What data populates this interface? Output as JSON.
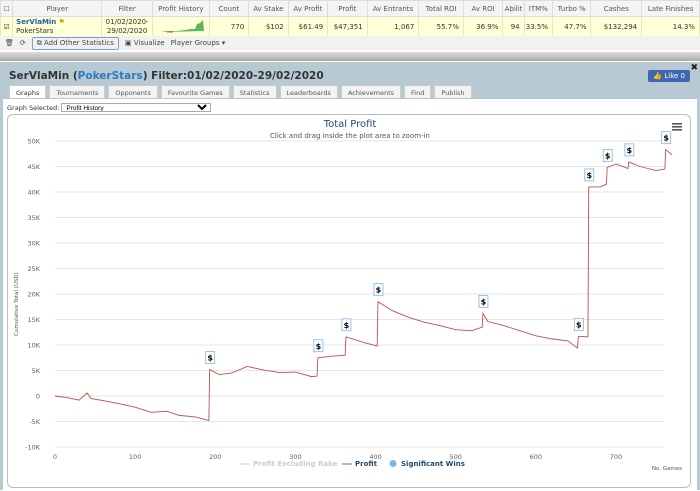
{
  "table": {
    "headers": [
      "",
      "Player",
      "Filter",
      "Profit History",
      "Count",
      "Av Stake",
      "Av Profit",
      "Profit",
      "Av Entrants",
      "Total ROI",
      "Av ROI",
      "Abilit",
      "ITM%",
      "Turbo %",
      "Cashes",
      "Late Finishes"
    ],
    "row": {
      "player": "SerVlaMin",
      "site": "PokerStars",
      "filter": "01/02/2020-29/02/2020",
      "count": "770",
      "av_stake": "$102",
      "av_profit": "$61.49",
      "profit": "$47,351",
      "av_entrants": "1,067",
      "total_roi": "55.7%",
      "av_roi": "36.9%",
      "ability": "94",
      "itm": "33.5%",
      "turbo": "47.7%",
      "cashes": "$132,294",
      "late_finishes": "14.3%"
    }
  },
  "toolbar": {
    "add_stats": "Add Other Statistics",
    "visualize": "Visualize",
    "player_groups": "Player Groups ▾"
  },
  "panel": {
    "name": "SerVlaMin",
    "open": " (",
    "site": "PokerStars",
    "close": ")",
    "filter": " Filter:01/02/2020-29/02/2020",
    "like": "👍 Like 0",
    "tabs": [
      "Graphs",
      "Tournaments",
      "Opponents",
      "Favourite Games",
      "Statistics",
      "Leaderboards",
      "Achievements",
      "Find",
      "Publish"
    ],
    "graph_label": "Graph Selected:",
    "graph_value": "Profit History"
  },
  "chart_data": {
    "type": "line",
    "title": "Total Profit",
    "subtitle": "Click and drag inside the plot area to zoom-in",
    "ylabel": "Cumulative Total (USD)",
    "xlabel": "No. Games",
    "xlim": [
      0,
      760
    ],
    "ylim": [
      -10000,
      50000
    ],
    "xticks": [
      0,
      100,
      200,
      300,
      400,
      500,
      600,
      700
    ],
    "yticks": [
      -10000,
      -5000,
      0,
      5000,
      10000,
      15000,
      20000,
      25000,
      30000,
      35000,
      40000,
      45000,
      50000
    ],
    "ytick_labels": [
      "-10K",
      "-5K",
      "0",
      "5K",
      "10K",
      "15K",
      "20K",
      "25K",
      "30K",
      "35K",
      "40K",
      "45K",
      "50K"
    ],
    "legend": [
      "Profit Excluding Rake",
      "Profit",
      "Significant Wins"
    ],
    "series": [
      {
        "name": "Profit",
        "color": "#c0504d",
        "points": [
          [
            0,
            0
          ],
          [
            15,
            -300
          ],
          [
            30,
            -800
          ],
          [
            40,
            600
          ],
          [
            45,
            -500
          ],
          [
            60,
            -900
          ],
          [
            80,
            -1500
          ],
          [
            100,
            -2200
          ],
          [
            120,
            -3200
          ],
          [
            140,
            -3000
          ],
          [
            155,
            -3800
          ],
          [
            175,
            -4100
          ],
          [
            192,
            -4800
          ],
          [
            193,
            5200
          ],
          [
            205,
            4200
          ],
          [
            220,
            4500
          ],
          [
            240,
            5800
          ],
          [
            260,
            5100
          ],
          [
            280,
            4600
          ],
          [
            300,
            4700
          ],
          [
            320,
            3800
          ],
          [
            327,
            3900
          ],
          [
            328,
            7500
          ],
          [
            345,
            7800
          ],
          [
            362,
            8000
          ],
          [
            363,
            11600
          ],
          [
            385,
            10500
          ],
          [
            402,
            9800
          ],
          [
            403,
            18500
          ],
          [
            420,
            16800
          ],
          [
            440,
            15500
          ],
          [
            460,
            14500
          ],
          [
            480,
            13800
          ],
          [
            500,
            13000
          ],
          [
            520,
            12800
          ],
          [
            533,
            13500
          ],
          [
            534,
            16200
          ],
          [
            540,
            14600
          ],
          [
            560,
            13800
          ],
          [
            580,
            12800
          ],
          [
            600,
            11800
          ],
          [
            620,
            11200
          ],
          [
            640,
            10800
          ],
          [
            652,
            9400
          ],
          [
            653,
            11700
          ],
          [
            665,
            11600
          ],
          [
            666,
            41000
          ],
          [
            680,
            41000
          ],
          [
            688,
            41500
          ],
          [
            689,
            44800
          ],
          [
            700,
            45500
          ],
          [
            715,
            44600
          ],
          [
            716,
            45900
          ],
          [
            730,
            45000
          ],
          [
            750,
            44200
          ],
          [
            761,
            44500
          ],
          [
            762,
            48300
          ],
          [
            770,
            47300
          ]
        ]
      }
    ],
    "significant_wins": [
      [
        193,
        5200
      ],
      [
        328,
        7500
      ],
      [
        363,
        11600
      ],
      [
        403,
        18500
      ],
      [
        534,
        16200
      ],
      [
        653,
        11700
      ],
      [
        666,
        41000
      ],
      [
        689,
        44800
      ],
      [
        716,
        45900
      ],
      [
        762,
        48300
      ]
    ]
  }
}
